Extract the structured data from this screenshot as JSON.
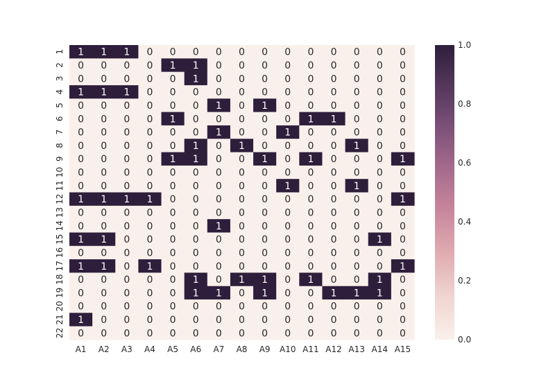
{
  "chart_data": {
    "type": "heatmap",
    "x_categories": [
      "A1",
      "A2",
      "A3",
      "A4",
      "A5",
      "A6",
      "A7",
      "A8",
      "A9",
      "A10",
      "A11",
      "A12",
      "A13",
      "A14",
      "A15"
    ],
    "y_categories": [
      "1",
      "2",
      "3",
      "4",
      "5",
      "6",
      "7",
      "8",
      "9",
      "10",
      "11",
      "12",
      "13",
      "14",
      "15",
      "16",
      "17",
      "18",
      "19",
      "20",
      "21",
      "22"
    ],
    "values": [
      [
        1,
        1,
        1,
        0,
        0,
        0,
        0,
        0,
        0,
        0,
        0,
        0,
        0,
        0,
        0
      ],
      [
        0,
        0,
        0,
        0,
        1,
        1,
        0,
        0,
        0,
        0,
        0,
        0,
        0,
        0,
        0
      ],
      [
        0,
        0,
        0,
        0,
        0,
        1,
        0,
        0,
        0,
        0,
        0,
        0,
        0,
        0,
        0
      ],
      [
        1,
        1,
        1,
        0,
        0,
        0,
        0,
        0,
        0,
        0,
        0,
        0,
        0,
        0,
        0
      ],
      [
        0,
        0,
        0,
        0,
        0,
        0,
        1,
        0,
        1,
        0,
        0,
        0,
        0,
        0,
        0
      ],
      [
        0,
        0,
        0,
        0,
        1,
        0,
        0,
        0,
        0,
        0,
        1,
        1,
        0,
        0,
        0
      ],
      [
        0,
        0,
        0,
        0,
        0,
        0,
        1,
        0,
        0,
        1,
        0,
        0,
        0,
        0,
        0
      ],
      [
        0,
        0,
        0,
        0,
        0,
        1,
        0,
        1,
        0,
        0,
        0,
        0,
        1,
        0,
        0
      ],
      [
        0,
        0,
        0,
        0,
        1,
        1,
        0,
        0,
        1,
        0,
        1,
        0,
        0,
        0,
        1
      ],
      [
        0,
        0,
        0,
        0,
        0,
        0,
        0,
        0,
        0,
        0,
        0,
        0,
        0,
        0,
        0
      ],
      [
        0,
        0,
        0,
        0,
        0,
        0,
        0,
        0,
        0,
        1,
        0,
        0,
        1,
        0,
        0
      ],
      [
        1,
        1,
        1,
        1,
        0,
        0,
        0,
        0,
        0,
        0,
        0,
        0,
        0,
        0,
        1
      ],
      [
        0,
        0,
        0,
        0,
        0,
        0,
        0,
        0,
        0,
        0,
        0,
        0,
        0,
        0,
        0
      ],
      [
        0,
        0,
        0,
        0,
        0,
        0,
        1,
        0,
        0,
        0,
        0,
        0,
        0,
        0,
        0
      ],
      [
        1,
        1,
        0,
        0,
        0,
        0,
        0,
        0,
        0,
        0,
        0,
        0,
        0,
        1,
        0
      ],
      [
        0,
        0,
        0,
        0,
        0,
        0,
        0,
        0,
        0,
        0,
        0,
        0,
        0,
        0,
        0
      ],
      [
        1,
        1,
        0,
        1,
        0,
        0,
        0,
        0,
        0,
        0,
        0,
        0,
        0,
        0,
        1
      ],
      [
        0,
        0,
        0,
        0,
        0,
        1,
        0,
        1,
        1,
        0,
        1,
        0,
        0,
        1,
        0
      ],
      [
        0,
        0,
        0,
        0,
        0,
        1,
        1,
        0,
        1,
        0,
        0,
        1,
        1,
        1,
        0
      ],
      [
        0,
        0,
        0,
        0,
        0,
        0,
        0,
        0,
        0,
        0,
        0,
        0,
        0,
        0,
        0
      ],
      [
        1,
        0,
        0,
        0,
        0,
        0,
        0,
        0,
        0,
        0,
        0,
        0,
        0,
        0,
        0
      ],
      [
        0,
        0,
        0,
        0,
        0,
        0,
        0,
        0,
        0,
        0,
        0,
        0,
        0,
        0,
        0
      ]
    ],
    "value_range": [
      0.0,
      1.0
    ],
    "colorbar": {
      "ticks": [
        "0.0",
        "0.2",
        "0.4",
        "0.6",
        "0.8",
        "1.0"
      ],
      "tick_values": [
        0.0,
        0.2,
        0.4,
        0.6,
        0.8,
        1.0
      ],
      "placement": "right"
    },
    "colors": {
      "low": "#faf0eb",
      "high": "#2e1e3b",
      "text_on_low": "#262626",
      "text_on_high": "#ffffff"
    },
    "title": "",
    "xlabel": "",
    "ylabel": "",
    "grid": false
  }
}
